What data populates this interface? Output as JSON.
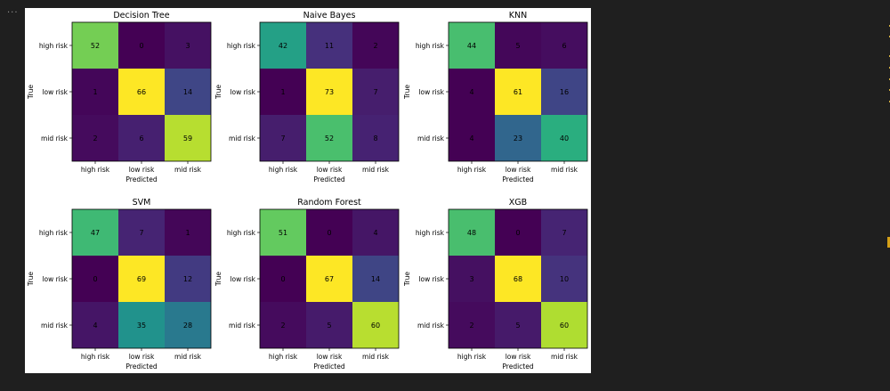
{
  "notebook": {
    "cell_menu": "..."
  },
  "colors": {
    "background": "#1f1f1f",
    "figure": "#ffffff",
    "colormap": "viridis"
  },
  "chart_data": [
    {
      "type": "heatmap",
      "title": "Decision Tree",
      "xlabel": "Predicted",
      "ylabel": "True",
      "x_tick_labels": [
        "high risk",
        "low risk",
        "mid risk"
      ],
      "y_tick_labels": [
        "high risk",
        "low risk",
        "mid risk"
      ],
      "matrix": [
        [
          52,
          0,
          3
        ],
        [
          1,
          66,
          14
        ],
        [
          2,
          6,
          59
        ]
      ]
    },
    {
      "type": "heatmap",
      "title": "Naive Bayes",
      "xlabel": "Predicted",
      "ylabel": "True",
      "x_tick_labels": [
        "high risk",
        "low risk",
        "mid risk"
      ],
      "y_tick_labels": [
        "high risk",
        "low risk",
        "mid risk"
      ],
      "matrix": [
        [
          42,
          11,
          2
        ],
        [
          1,
          73,
          7
        ],
        [
          7,
          52,
          8
        ]
      ]
    },
    {
      "type": "heatmap",
      "title": "KNN",
      "xlabel": "Predicted",
      "ylabel": "True",
      "x_tick_labels": [
        "high risk",
        "low risk",
        "mid risk"
      ],
      "y_tick_labels": [
        "high risk",
        "low risk",
        "mid risk"
      ],
      "matrix": [
        [
          44,
          5,
          6
        ],
        [
          4,
          61,
          16
        ],
        [
          4,
          23,
          40
        ]
      ]
    },
    {
      "type": "heatmap",
      "title": "SVM",
      "xlabel": "Predicted",
      "ylabel": "True",
      "x_tick_labels": [
        "high risk",
        "low risk",
        "mid risk"
      ],
      "y_tick_labels": [
        "high risk",
        "low risk",
        "mid risk"
      ],
      "matrix": [
        [
          47,
          7,
          1
        ],
        [
          0,
          69,
          12
        ],
        [
          4,
          35,
          28
        ]
      ]
    },
    {
      "type": "heatmap",
      "title": "Random Forest",
      "xlabel": "Predicted",
      "ylabel": "True",
      "x_tick_labels": [
        "high risk",
        "low risk",
        "mid risk"
      ],
      "y_tick_labels": [
        "high risk",
        "low risk",
        "mid risk"
      ],
      "matrix": [
        [
          51,
          0,
          4
        ],
        [
          0,
          67,
          14
        ],
        [
          2,
          5,
          60
        ]
      ]
    },
    {
      "type": "heatmap",
      "title": "XGB",
      "xlabel": "Predicted",
      "ylabel": "True",
      "x_tick_labels": [
        "high risk",
        "low risk",
        "mid risk"
      ],
      "y_tick_labels": [
        "high risk",
        "low risk",
        "mid risk"
      ],
      "matrix": [
        [
          48,
          0,
          7
        ],
        [
          3,
          68,
          10
        ],
        [
          2,
          5,
          60
        ]
      ]
    }
  ]
}
